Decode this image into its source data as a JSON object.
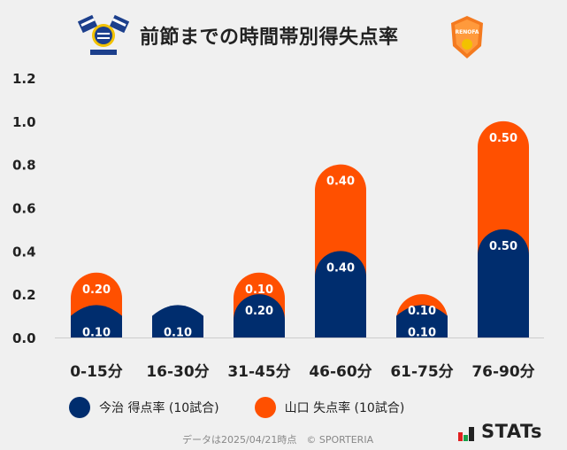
{
  "header": {
    "title": "前節までの時間帯別得失点率",
    "left_logo": "imabari-crest",
    "right_logo": "renofa-yamaguchi-crest",
    "right_logo_text": "RENOFA"
  },
  "chart_data": {
    "type": "bar",
    "stacked": true,
    "categories": [
      "0-15分",
      "16-30分",
      "31-45分",
      "46-60分",
      "61-75分",
      "76-90分"
    ],
    "series": [
      {
        "name": "今治 得点率 (10試合)",
        "color": "#002d6e",
        "values": [
          0.1,
          0.1,
          0.2,
          0.4,
          0.1,
          0.5
        ]
      },
      {
        "name": "山口 失点率 (10試合)",
        "color": "#ff5000",
        "values": [
          0.2,
          0.0,
          0.1,
          0.4,
          0.1,
          0.5
        ]
      }
    ],
    "ylim": [
      0,
      1.2
    ],
    "yticks": [
      "0.0",
      "0.2",
      "0.4",
      "0.6",
      "0.8",
      "1.0",
      "1.2"
    ],
    "grid": false,
    "legend_position": "bottom"
  },
  "footer": {
    "note": "データは2025/04/21時点　© SPORTERIA",
    "brand": "STATs"
  }
}
